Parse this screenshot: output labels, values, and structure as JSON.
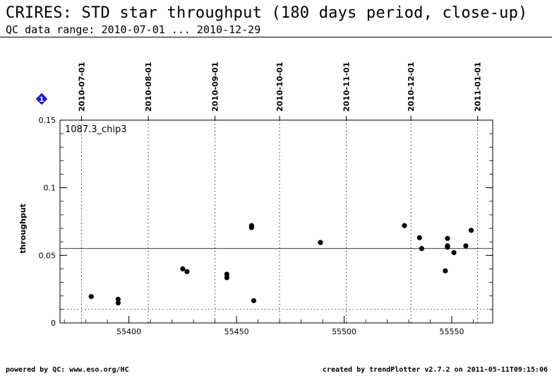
{
  "header": {
    "title": "CRIRES: STD star throughput (180 days period, close-up)",
    "subtitle": "QC data range: 2010-07-01 ... 2010-12-29"
  },
  "footer": {
    "left": "powered by QC: www.eso.org/HC",
    "right": "created by trendPlotter v2.7.2 on 2011-05-11T09:15:06"
  },
  "marker": {
    "label": "1",
    "color": "#1a1aff"
  },
  "chart_data": {
    "type": "scatter",
    "panel_label": "1087.3_chip3",
    "ylabel": "throughput",
    "xlim": [
      55368,
      55569
    ],
    "ylim": [
      0,
      0.15
    ],
    "yticks": [
      0,
      0.05,
      0.1,
      0.15
    ],
    "ytick_labels": [
      "0",
      "0.05",
      "0.1",
      "0.15"
    ],
    "xticks": [
      55400,
      55450,
      55500,
      55550
    ],
    "xtick_labels": [
      "55400",
      "55450",
      "55500",
      "55550"
    ],
    "date_ticks": [
      {
        "mjd": 55378,
        "label": "2010-07-01"
      },
      {
        "mjd": 55409,
        "label": "2010-08-01"
      },
      {
        "mjd": 55440,
        "label": "2010-09-01"
      },
      {
        "mjd": 55470,
        "label": "2010-10-01"
      },
      {
        "mjd": 55501,
        "label": "2010-11-01"
      },
      {
        "mjd": 55531,
        "label": "2010-12-01"
      },
      {
        "mjd": 55562,
        "label": "2011-01-01"
      }
    ],
    "hlines": [
      {
        "y": 0.055,
        "style": "solid"
      },
      {
        "y": 0.01,
        "style": "dotted"
      }
    ],
    "points": [
      {
        "x": 55382.5,
        "y": 0.0195
      },
      {
        "x": 55395.0,
        "y": 0.0175
      },
      {
        "x": 55395.0,
        "y": 0.0148
      },
      {
        "x": 55425.0,
        "y": 0.04
      },
      {
        "x": 55427.0,
        "y": 0.038
      },
      {
        "x": 55445.5,
        "y": 0.036
      },
      {
        "x": 55445.5,
        "y": 0.0335
      },
      {
        "x": 55457.0,
        "y": 0.072
      },
      {
        "x": 55457.0,
        "y": 0.0705
      },
      {
        "x": 55458.0,
        "y": 0.0165
      },
      {
        "x": 55489.0,
        "y": 0.0595
      },
      {
        "x": 55528.0,
        "y": 0.072
      },
      {
        "x": 55535.0,
        "y": 0.063
      },
      {
        "x": 55536.0,
        "y": 0.055
      },
      {
        "x": 55547.0,
        "y": 0.0385
      },
      {
        "x": 55548.0,
        "y": 0.0625
      },
      {
        "x": 55548.0,
        "y": 0.057
      },
      {
        "x": 55548.0,
        "y": 0.056
      },
      {
        "x": 55551.0,
        "y": 0.052
      },
      {
        "x": 55556.5,
        "y": 0.057
      },
      {
        "x": 55559.0,
        "y": 0.0685
      }
    ],
    "grid": "vertical dotted at date ticks"
  }
}
